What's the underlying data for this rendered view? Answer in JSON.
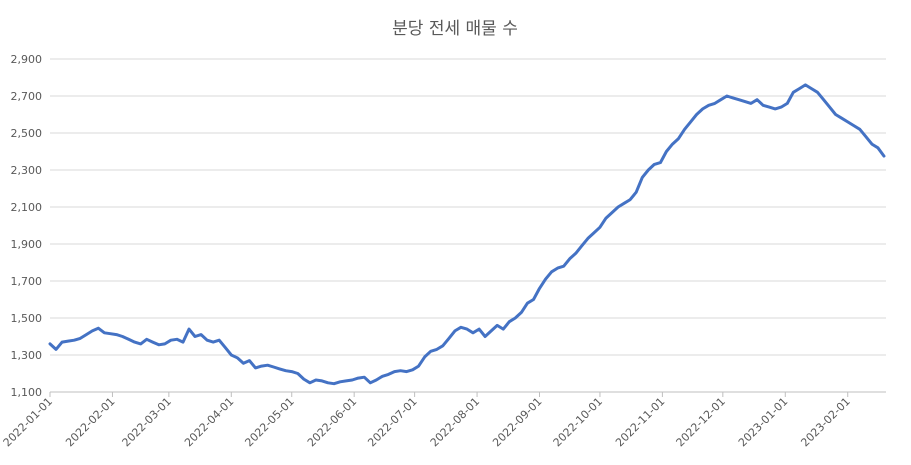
{
  "chart_data": {
    "type": "line",
    "title": "분당 전세 매물 수",
    "xlabel": "",
    "ylabel": "",
    "ylim": [
      1100,
      2900
    ],
    "y_ticks": [
      1100,
      1300,
      1500,
      1700,
      1900,
      2100,
      2300,
      2500,
      2700,
      2900
    ],
    "y_tick_labels": [
      "1,100",
      "1,300",
      "1,500",
      "1,700",
      "1,900",
      "2,100",
      "2,300",
      "2,500",
      "2,700",
      "2,900"
    ],
    "x_range": [
      "2022-01-01",
      "2023-02-20"
    ],
    "x_ticks": [
      "2022-01-01",
      "2022-02-01",
      "2022-03-01",
      "2022-04-01",
      "2022-05-01",
      "2022-06-01",
      "2022-07-01",
      "2022-08-01",
      "2022-09-01",
      "2022-10-01",
      "2022-11-01",
      "2022-12-01",
      "2023-01-01",
      "2023-02-01"
    ],
    "grid": true,
    "line_color": "#4472c4",
    "series": [
      {
        "x": [
          "2022-01-01",
          "2022-01-04",
          "2022-01-07",
          "2022-01-10",
          "2022-01-13",
          "2022-01-16",
          "2022-01-19",
          "2022-01-22",
          "2022-01-25",
          "2022-01-28",
          "2022-01-31",
          "2022-02-03",
          "2022-02-06",
          "2022-02-09",
          "2022-02-12",
          "2022-02-15",
          "2022-02-18",
          "2022-02-21",
          "2022-02-24",
          "2022-02-27",
          "2022-03-02",
          "2022-03-05",
          "2022-03-08",
          "2022-03-11",
          "2022-03-14",
          "2022-03-17",
          "2022-03-20",
          "2022-03-23",
          "2022-03-26",
          "2022-03-29",
          "2022-04-01",
          "2022-04-04",
          "2022-04-07",
          "2022-04-10",
          "2022-04-13",
          "2022-04-16",
          "2022-04-19",
          "2022-04-22",
          "2022-04-25",
          "2022-04-28",
          "2022-05-01",
          "2022-05-04",
          "2022-05-07",
          "2022-05-10",
          "2022-05-13",
          "2022-05-16",
          "2022-05-19",
          "2022-05-22",
          "2022-05-25",
          "2022-05-28",
          "2022-05-31",
          "2022-06-03",
          "2022-06-06",
          "2022-06-09",
          "2022-06-12",
          "2022-06-15",
          "2022-06-18",
          "2022-06-21",
          "2022-06-24",
          "2022-06-27",
          "2022-06-30",
          "2022-07-03",
          "2022-07-06",
          "2022-07-09",
          "2022-07-12",
          "2022-07-15",
          "2022-07-18",
          "2022-07-21",
          "2022-07-24",
          "2022-07-27",
          "2022-07-30",
          "2022-08-02",
          "2022-08-05",
          "2022-08-08",
          "2022-08-11",
          "2022-08-14",
          "2022-08-17",
          "2022-08-20",
          "2022-08-23",
          "2022-08-26",
          "2022-08-29",
          "2022-09-01",
          "2022-09-04",
          "2022-09-07",
          "2022-09-10",
          "2022-09-13",
          "2022-09-16",
          "2022-09-19",
          "2022-09-22",
          "2022-09-25",
          "2022-09-28",
          "2022-10-01",
          "2022-10-04",
          "2022-10-07",
          "2022-10-10",
          "2022-10-13",
          "2022-10-16",
          "2022-10-19",
          "2022-10-22",
          "2022-10-25",
          "2022-10-28",
          "2022-10-31",
          "2022-11-03",
          "2022-11-06",
          "2022-11-09",
          "2022-11-12",
          "2022-11-15",
          "2022-11-18",
          "2022-11-21",
          "2022-11-24",
          "2022-11-27",
          "2022-11-30",
          "2022-12-03",
          "2022-12-06",
          "2022-12-09",
          "2022-12-12",
          "2022-12-15",
          "2022-12-18",
          "2022-12-21",
          "2022-12-24",
          "2022-12-27",
          "2022-12-30",
          "2023-01-02",
          "2023-01-05",
          "2023-01-08",
          "2023-01-11",
          "2023-01-14",
          "2023-01-17",
          "2023-01-20",
          "2023-01-23",
          "2023-01-26",
          "2023-01-29",
          "2023-02-01",
          "2023-02-04",
          "2023-02-07",
          "2023-02-10",
          "2023-02-13",
          "2023-02-16",
          "2023-02-19"
        ],
        "values": [
          1360,
          1330,
          1370,
          1375,
          1380,
          1390,
          1410,
          1430,
          1445,
          1420,
          1415,
          1410,
          1400,
          1385,
          1370,
          1360,
          1385,
          1370,
          1355,
          1360,
          1380,
          1385,
          1370,
          1440,
          1400,
          1410,
          1380,
          1370,
          1380,
          1340,
          1300,
          1285,
          1255,
          1270,
          1230,
          1240,
          1245,
          1235,
          1225,
          1215,
          1210,
          1200,
          1170,
          1150,
          1165,
          1160,
          1150,
          1145,
          1155,
          1160,
          1165,
          1175,
          1180,
          1150,
          1165,
          1185,
          1195,
          1210,
          1215,
          1210,
          1220,
          1240,
          1290,
          1320,
          1330,
          1350,
          1390,
          1430,
          1450,
          1440,
          1420,
          1440,
          1400,
          1430,
          1460,
          1440,
          1480,
          1500,
          1530,
          1580,
          1600,
          1660,
          1710,
          1750,
          1770,
          1780,
          1820,
          1850,
          1890,
          1930,
          1960,
          1990,
          2040,
          2070,
          2100,
          2120,
          2140,
          2180,
          2260,
          2300,
          2330,
          2340,
          2400,
          2440,
          2470,
          2520,
          2560,
          2600,
          2630,
          2650,
          2660,
          2680,
          2700,
          2690,
          2680,
          2670,
          2660,
          2680,
          2650,
          2640,
          2630,
          2640,
          2660,
          2720,
          2740,
          2760,
          2740,
          2720,
          2680,
          2640,
          2600,
          2580,
          2560,
          2540,
          2520,
          2480,
          2440,
          2420,
          2375
        ]
      }
    ]
  }
}
